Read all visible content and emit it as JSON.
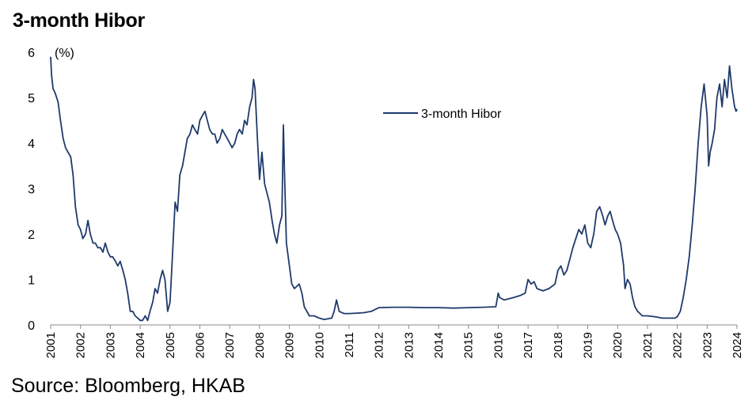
{
  "title": "3-month Hibor",
  "source": "Source: Bloomberg, HKAB",
  "chart_data": {
    "type": "line",
    "title": "3-month Hibor",
    "ylabel": "(%)",
    "xlabel": "",
    "xlim": [
      2001,
      2024
    ],
    "ylim": [
      0,
      6
    ],
    "yticks": [
      0,
      1,
      2,
      3,
      4,
      5,
      6
    ],
    "xticks": [
      "2001",
      "2002",
      "2003",
      "2004",
      "2005",
      "2006",
      "2007",
      "2008",
      "2009",
      "2010",
      "2011",
      "2012",
      "2013",
      "2014",
      "2015",
      "2016",
      "2017",
      "2018",
      "2019",
      "2020",
      "2021",
      "2022",
      "2023",
      "2024"
    ],
    "legend": "top-center",
    "grid": false,
    "color": "#1f3a6b",
    "series": [
      {
        "name": "3-month Hibor",
        "x": [
          2001.0,
          2001.03,
          2001.08,
          2001.15,
          2001.25,
          2001.33,
          2001.42,
          2001.5,
          2001.58,
          2001.67,
          2001.75,
          2001.83,
          2001.92,
          2002.0,
          2002.08,
          2002.17,
          2002.25,
          2002.33,
          2002.42,
          2002.5,
          2002.58,
          2002.67,
          2002.75,
          2002.83,
          2002.92,
          2003.0,
          2003.08,
          2003.17,
          2003.25,
          2003.33,
          2003.42,
          2003.5,
          2003.58,
          2003.67,
          2003.75,
          2003.83,
          2003.92,
          2004.0,
          2004.08,
          2004.17,
          2004.25,
          2004.33,
          2004.42,
          2004.5,
          2004.58,
          2004.67,
          2004.75,
          2004.83,
          2004.92,
          2005.0,
          2005.08,
          2005.17,
          2005.25,
          2005.33,
          2005.42,
          2005.5,
          2005.58,
          2005.67,
          2005.75,
          2005.83,
          2005.92,
          2006.0,
          2006.08,
          2006.17,
          2006.25,
          2006.33,
          2006.42,
          2006.5,
          2006.58,
          2006.67,
          2006.75,
          2006.83,
          2006.92,
          2007.0,
          2007.08,
          2007.17,
          2007.25,
          2007.33,
          2007.42,
          2007.5,
          2007.58,
          2007.67,
          2007.75,
          2007.8,
          2007.85,
          2007.92,
          2008.0,
          2008.08,
          2008.17,
          2008.25,
          2008.33,
          2008.42,
          2008.5,
          2008.58,
          2008.67,
          2008.75,
          2008.8,
          2008.83,
          2008.9,
          2008.96,
          2009.0,
          2009.08,
          2009.17,
          2009.25,
          2009.33,
          2009.42,
          2009.5,
          2009.67,
          2009.83,
          2010.0,
          2010.17,
          2010.33,
          2010.42,
          2010.5,
          2010.58,
          2010.67,
          2010.83,
          2011.0,
          2011.25,
          2011.5,
          2011.75,
          2012.0,
          2012.5,
          2013.0,
          2013.5,
          2014.0,
          2014.5,
          2015.0,
          2015.5,
          2015.92,
          2016.0,
          2016.05,
          2016.2,
          2016.5,
          2016.75,
          2016.9,
          2017.0,
          2017.1,
          2017.2,
          2017.3,
          2017.5,
          2017.7,
          2017.9,
          2018.0,
          2018.1,
          2018.2,
          2018.3,
          2018.42,
          2018.5,
          2018.6,
          2018.7,
          2018.8,
          2018.9,
          2019.0,
          2019.1,
          2019.2,
          2019.3,
          2019.4,
          2019.5,
          2019.58,
          2019.67,
          2019.75,
          2019.83,
          2019.92,
          2020.0,
          2020.1,
          2020.2,
          2020.25,
          2020.33,
          2020.42,
          2020.5,
          2020.58,
          2020.67,
          2020.75,
          2020.83,
          2020.92,
          2021.0,
          2021.25,
          2021.5,
          2021.75,
          2021.92,
          2022.0,
          2022.1,
          2022.2,
          2022.3,
          2022.4,
          2022.5,
          2022.6,
          2022.7,
          2022.8,
          2022.9,
          2023.0,
          2023.05,
          2023.1,
          2023.17,
          2023.25,
          2023.33,
          2023.42,
          2023.5,
          2023.58,
          2023.67,
          2023.75,
          2023.83,
          2023.92,
          2023.97,
          2024.0
        ],
        "values": [
          5.9,
          5.5,
          5.2,
          5.1,
          4.9,
          4.5,
          4.1,
          3.9,
          3.8,
          3.7,
          3.3,
          2.6,
          2.2,
          2.1,
          1.9,
          2.0,
          2.3,
          2.0,
          1.8,
          1.8,
          1.7,
          1.7,
          1.6,
          1.8,
          1.6,
          1.5,
          1.5,
          1.4,
          1.3,
          1.4,
          1.2,
          1.0,
          0.7,
          0.3,
          0.3,
          0.2,
          0.15,
          0.1,
          0.1,
          0.2,
          0.1,
          0.3,
          0.5,
          0.8,
          0.7,
          1.0,
          1.2,
          1.0,
          0.3,
          0.5,
          1.5,
          2.7,
          2.5,
          3.3,
          3.5,
          3.8,
          4.1,
          4.2,
          4.4,
          4.3,
          4.2,
          4.5,
          4.6,
          4.7,
          4.5,
          4.3,
          4.2,
          4.2,
          4.0,
          4.1,
          4.3,
          4.2,
          4.1,
          4.0,
          3.9,
          4.0,
          4.2,
          4.3,
          4.2,
          4.5,
          4.4,
          4.8,
          5.0,
          5.4,
          5.2,
          4.2,
          3.2,
          3.8,
          3.1,
          2.9,
          2.7,
          2.3,
          2.0,
          1.8,
          2.2,
          2.4,
          4.4,
          3.5,
          1.8,
          1.5,
          1.3,
          0.9,
          0.8,
          0.85,
          0.9,
          0.7,
          0.4,
          0.2,
          0.2,
          0.15,
          0.12,
          0.14,
          0.15,
          0.3,
          0.55,
          0.3,
          0.25,
          0.25,
          0.26,
          0.27,
          0.3,
          0.38,
          0.39,
          0.39,
          0.38,
          0.38,
          0.37,
          0.38,
          0.39,
          0.4,
          0.7,
          0.6,
          0.55,
          0.6,
          0.65,
          0.7,
          1.0,
          0.9,
          0.95,
          0.8,
          0.75,
          0.8,
          0.9,
          1.2,
          1.3,
          1.1,
          1.2,
          1.5,
          1.7,
          1.9,
          2.1,
          2.0,
          2.2,
          1.8,
          1.7,
          2.0,
          2.5,
          2.6,
          2.4,
          2.2,
          2.4,
          2.5,
          2.3,
          2.1,
          2.0,
          1.8,
          1.3,
          0.8,
          1.0,
          0.9,
          0.6,
          0.4,
          0.3,
          0.25,
          0.2,
          0.2,
          0.2,
          0.18,
          0.15,
          0.15,
          0.15,
          0.18,
          0.3,
          0.6,
          1.0,
          1.5,
          2.2,
          3.0,
          4.0,
          4.8,
          5.3,
          4.6,
          3.5,
          3.8,
          4.0,
          4.3,
          5.0,
          5.3,
          4.8,
          5.4,
          5.0,
          5.7,
          5.2,
          4.8,
          4.7,
          4.75
        ]
      }
    ]
  }
}
